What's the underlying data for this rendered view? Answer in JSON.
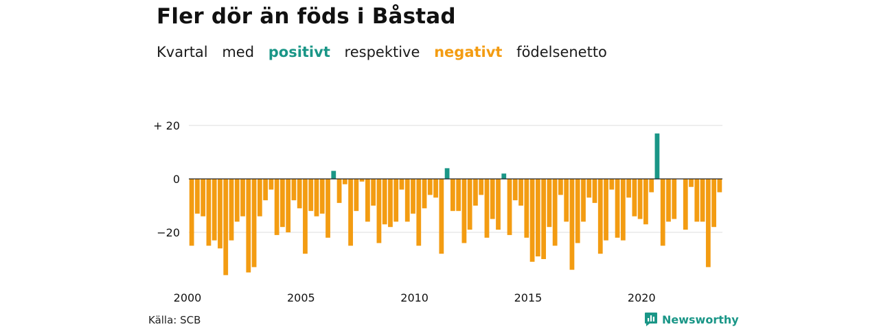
{
  "title": "Fler dör än föds i Båstad",
  "subtitle": {
    "part1": "Kvartal",
    "part2": "med",
    "positive_word": "positivt",
    "part3": "respektive",
    "negative_word": "negativt",
    "part4": "födelsenetto"
  },
  "source": "Källa: SCB",
  "brand": {
    "name": "Newsworthy",
    "icon": "newsworthy-logo-icon"
  },
  "colors": {
    "positive": "#1a9687",
    "negative": "#f39c12",
    "grid": "#dddddd",
    "zero_line": "#222222"
  },
  "chart_data": {
    "type": "bar",
    "title": "Fler dör än föds i Båstad",
    "subtitle": "Kvartal med positivt respektive negativt födelsenetto",
    "xlabel": "",
    "ylabel": "",
    "x_start": "2000Q1",
    "x_ticks": [
      "2000",
      "2005",
      "2010",
      "2015",
      "2020"
    ],
    "y_ticks": [
      {
        "value": 20,
        "label": "+ 20"
      },
      {
        "value": 0,
        "label": "0"
      },
      {
        "value": -20,
        "label": "−20"
      }
    ],
    "ylim": [
      -37,
      22
    ],
    "grid": true,
    "values": [
      -25,
      -13,
      -14,
      -25,
      -23,
      -26,
      -36,
      -23,
      -16,
      -14,
      -35,
      -33,
      -14,
      -8,
      -4,
      -21,
      -18,
      -20,
      -8,
      -11,
      -28,
      -12,
      -14,
      -13,
      -22,
      3,
      -9,
      -2,
      -25,
      -12,
      -1,
      -16,
      -10,
      -24,
      -17,
      -18,
      -16,
      -4,
      -16,
      -13,
      -25,
      -11,
      -6,
      -7,
      -28,
      4,
      -12,
      -12,
      -24,
      -19,
      -10,
      -6,
      -22,
      -15,
      -19,
      2,
      -21,
      -8,
      -10,
      -22,
      -31,
      -29,
      -30,
      -18,
      -25,
      -6,
      -16,
      -34,
      -24,
      -16,
      -7,
      -9,
      -28,
      -23,
      -4,
      -22,
      -23,
      -7,
      -14,
      -15,
      -17,
      -5,
      17,
      -25,
      -16,
      -15,
      0,
      -19,
      -3,
      -16,
      -16,
      -33,
      -18,
      -5
    ]
  }
}
